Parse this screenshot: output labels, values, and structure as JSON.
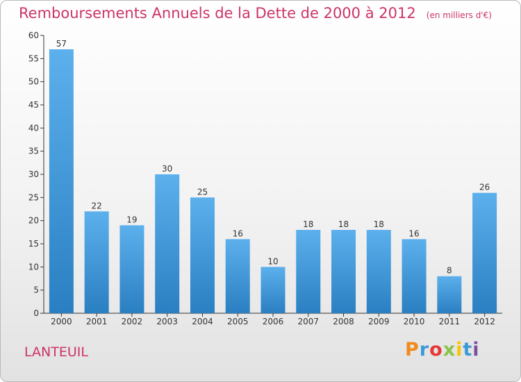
{
  "title": "Remboursements Annuels de la Dette de 2000 à 2012",
  "subtitle": "(en milliers d'€)",
  "commune": "LANTEUIL",
  "logo": {
    "text": "Proxiti",
    "colors": [
      "#f08a1c",
      "#3a9ad9",
      "#e53935",
      "#8bc34a",
      "#f7c600",
      "#3a9ad9",
      "#7b4fa0"
    ]
  },
  "chart_data": {
    "type": "bar",
    "categories": [
      "2000",
      "2001",
      "2002",
      "2003",
      "2004",
      "2005",
      "2006",
      "2007",
      "2008",
      "2009",
      "2010",
      "2011",
      "2012"
    ],
    "values": [
      57,
      22,
      19,
      30,
      25,
      16,
      10,
      18,
      18,
      18,
      16,
      8,
      26
    ],
    "title": "Remboursements Annuels de la Dette de 2000 à 2012",
    "xlabel": "",
    "ylabel": "",
    "ylim": [
      0,
      60
    ],
    "yticks": [
      0,
      5,
      10,
      15,
      20,
      25,
      30,
      35,
      40,
      45,
      50,
      55,
      60
    ],
    "grid": false,
    "bar_color": "#4a9fe0"
  }
}
